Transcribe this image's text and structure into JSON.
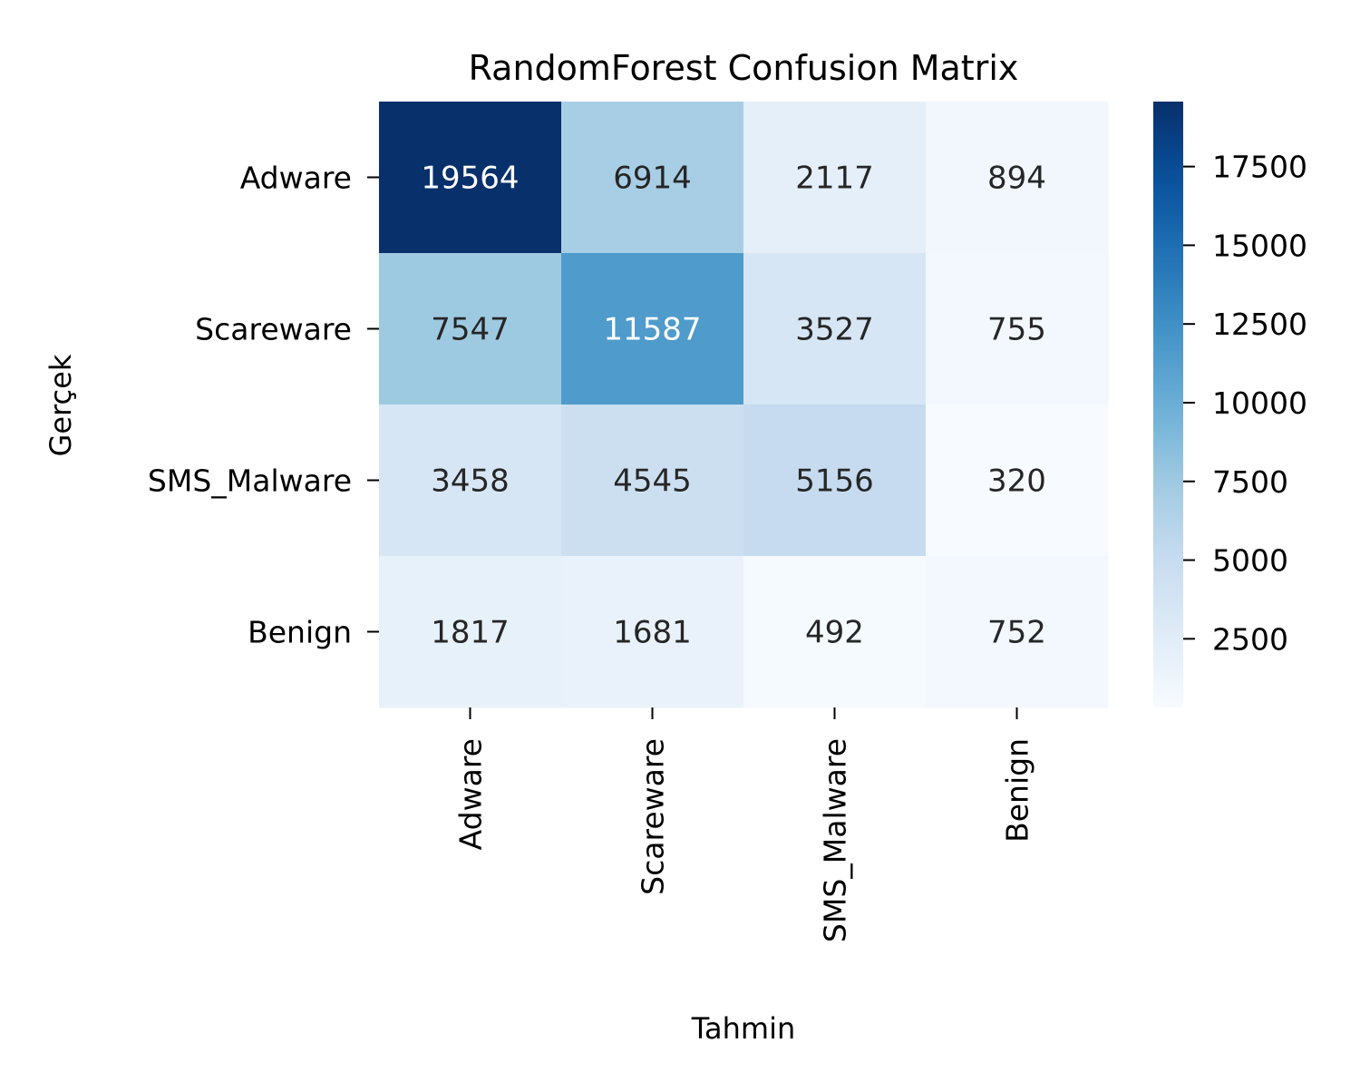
{
  "chart_data": {
    "type": "heatmap",
    "title": "RandomForest Confusion Matrix",
    "xlabel": "Tahmin",
    "ylabel": "Gerçek",
    "x_categories": [
      "Adware",
      "Scareware",
      "SMS_Malware",
      "Benign"
    ],
    "y_categories": [
      "Adware",
      "Scareware",
      "SMS_Malware",
      "Benign"
    ],
    "values": [
      [
        19564,
        6914,
        2117,
        894
      ],
      [
        7547,
        11587,
        3527,
        755
      ],
      [
        3458,
        4545,
        5156,
        320
      ],
      [
        1817,
        1681,
        492,
        752
      ]
    ],
    "colormap": "Blues",
    "color_range": [
      320,
      19564
    ],
    "colorbar_ticks": [
      2500,
      5000,
      7500,
      10000,
      12500,
      15000,
      17500
    ],
    "colorbar_tick_labels": [
      "2500",
      "5000",
      "7500",
      "10000",
      "12500",
      "15000",
      "17500"
    ],
    "grid": false,
    "colors": {
      "text_dark": "#262626",
      "text_light": "#ffffff"
    }
  }
}
